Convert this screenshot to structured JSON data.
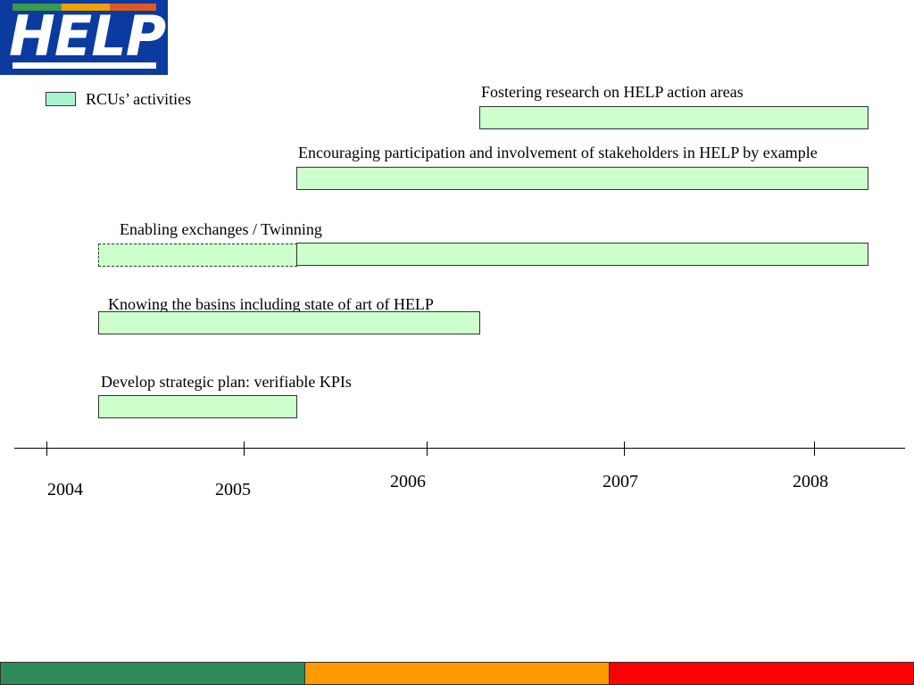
{
  "logo": {
    "text": "HELP"
  },
  "legend": {
    "label": "RCUs’ activities",
    "color": "#a8f5cf"
  },
  "activities": [
    {
      "label": "Fostering research on HELP action areas"
    },
    {
      "label": "Encouraging participation and involvement of stakeholders in HELP by example"
    },
    {
      "label": "Enabling exchanges / Twinning"
    },
    {
      "label": "Knowing the basins including state of art of HELP"
    },
    {
      "label": "Develop strategic plan: verifiable KPIs"
    }
  ],
  "timeline": {
    "years": [
      "2004",
      "2005",
      "2006",
      "2007",
      "2008"
    ]
  },
  "colors": {
    "bar_fill": "#ccffcc",
    "footer": [
      "#2e8b57",
      "#ff9900",
      "#ff0000"
    ]
  }
}
